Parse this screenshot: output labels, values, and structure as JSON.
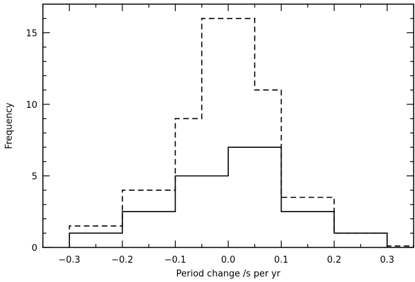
{
  "chart_data": {
    "type": "histogram",
    "title": "",
    "xlabel": "Period change /s per yr",
    "ylabel": "Frequency",
    "xlim": [
      -0.35,
      0.35
    ],
    "ylim": [
      0,
      17
    ],
    "grid": false,
    "xticks": [
      -0.3,
      -0.2,
      -0.1,
      0.0,
      0.1,
      0.2,
      0.3
    ],
    "xtick_labels": [
      "−0.3",
      "−0.2",
      "−0.1",
      "0.0",
      "0.1",
      "0.2",
      "0.3"
    ],
    "yticks": [
      0,
      5,
      10,
      15
    ],
    "ytick_labels": [
      "0",
      "5",
      "10",
      "15"
    ],
    "series": [
      {
        "style": "solid",
        "color": "#000000",
        "bin_edges": [
          -0.3,
          -0.2,
          -0.1,
          0.0,
          0.1,
          0.2,
          0.3
        ],
        "counts": [
          1,
          2.5,
          5,
          7,
          2.5,
          1
        ]
      },
      {
        "style": "dashed",
        "color": "#000000",
        "bin_edges": [
          -0.3,
          -0.2,
          -0.1,
          -0.05,
          0.05,
          0.1,
          0.2,
          0.3,
          0.35
        ],
        "counts": [
          1.5,
          4,
          9,
          16,
          11,
          3.5,
          1,
          0.1
        ]
      }
    ]
  }
}
